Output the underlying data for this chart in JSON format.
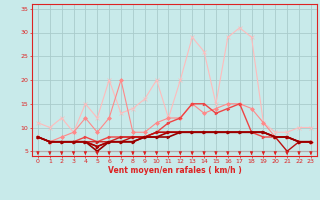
{
  "xlabel": "Vent moyen/en rafales ( km/h )",
  "xlim": [
    -0.5,
    23.5
  ],
  "ylim": [
    4,
    36
  ],
  "yticks": [
    5,
    10,
    15,
    20,
    25,
    30,
    35
  ],
  "xticks": [
    0,
    1,
    2,
    3,
    4,
    5,
    6,
    7,
    8,
    9,
    10,
    11,
    12,
    13,
    14,
    15,
    16,
    17,
    18,
    19,
    20,
    21,
    22,
    23
  ],
  "bg_color": "#c8eaea",
  "grid_color": "#aacccc",
  "arrow_color": "#dd2222",
  "series": [
    {
      "y": [
        11,
        10,
        12,
        9,
        15,
        12,
        20,
        13,
        14,
        16,
        20,
        12,
        20,
        29,
        26,
        15,
        29,
        31,
        29,
        11,
        9,
        9,
        10,
        10
      ],
      "color": "#ffbbbb",
      "lw": 0.8,
      "marker": "x",
      "ms": 2.5,
      "zorder": 2
    },
    {
      "y": [
        8,
        7,
        8,
        9,
        12,
        9,
        12,
        20,
        9,
        9,
        11,
        12,
        12,
        15,
        13,
        14,
        15,
        15,
        14,
        11,
        8,
        8,
        7,
        7
      ],
      "color": "#ff8888",
      "lw": 0.8,
      "marker": "D",
      "ms": 2,
      "zorder": 3
    },
    {
      "y": [
        8,
        7,
        7,
        7,
        8,
        7,
        8,
        8,
        8,
        8,
        9,
        11,
        12,
        15,
        15,
        13,
        14,
        15,
        9,
        8,
        8,
        8,
        7,
        7
      ],
      "color": "#ee4444",
      "lw": 1.0,
      "marker": ">",
      "ms": 2,
      "zorder": 4
    },
    {
      "y": [
        8,
        7,
        7,
        7,
        7,
        7,
        7,
        8,
        8,
        8,
        9,
        9,
        9,
        9,
        9,
        9,
        9,
        9,
        9,
        9,
        8,
        8,
        7,
        7
      ],
      "color": "#cc2222",
      "lw": 1.0,
      "marker": ">",
      "ms": 2,
      "zorder": 5
    },
    {
      "y": [
        8,
        7,
        7,
        7,
        7,
        6,
        7,
        7,
        8,
        8,
        9,
        9,
        9,
        9,
        9,
        9,
        9,
        9,
        9,
        9,
        8,
        5,
        7,
        7
      ],
      "color": "#bb1111",
      "lw": 1.0,
      "marker": ">",
      "ms": 2,
      "zorder": 5
    },
    {
      "y": [
        8,
        7,
        7,
        7,
        7,
        6,
        7,
        7,
        7,
        8,
        8,
        9,
        9,
        9,
        9,
        9,
        9,
        9,
        9,
        9,
        8,
        8,
        7,
        7
      ],
      "color": "#aa0000",
      "lw": 1.2,
      "marker": ">",
      "ms": 2,
      "zorder": 6
    },
    {
      "y": [
        8,
        7,
        7,
        7,
        7,
        5,
        7,
        7,
        7,
        8,
        8,
        8,
        9,
        9,
        9,
        9,
        9,
        9,
        9,
        9,
        8,
        8,
        7,
        7
      ],
      "color": "#990000",
      "lw": 1.2,
      "marker": ">",
      "ms": 2,
      "zorder": 6
    }
  ]
}
